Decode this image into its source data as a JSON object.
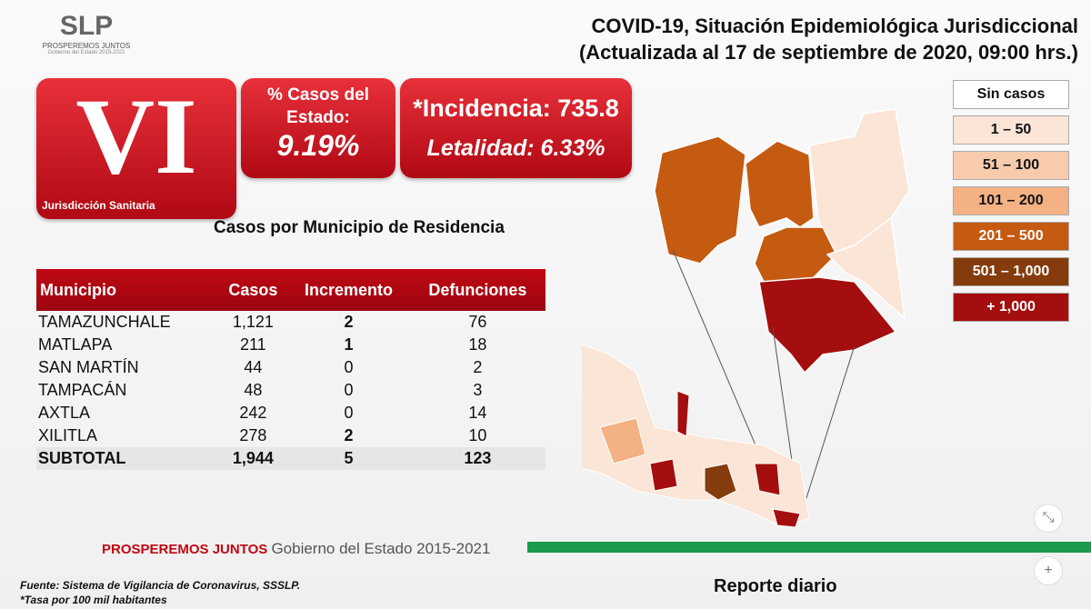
{
  "logo": {
    "text": "SLP",
    "line1": "PROSPEREMOS JUNTOS",
    "line2": "Gobierno del Estado 2015-2021"
  },
  "title": {
    "line1": "COVID-19, Situación Epidemiológica Jurisdiccional",
    "line2": "(Actualizada al 17 de septiembre de 2020, 09:00 hrs.)"
  },
  "jurisdiction": {
    "number": "VI",
    "label": "Jurisdicción Sanitaria"
  },
  "percent": {
    "label": "% Casos del Estado:",
    "value": "9.19%"
  },
  "incidence": {
    "label": "*Incidencia: 735.8",
    "lethality": "Letalidad: 6.33%"
  },
  "subtitle": "Casos por Municipio  de Residencia",
  "table": {
    "headers": [
      "Municipio",
      "Casos",
      "Incremento",
      "Defunciones"
    ],
    "rows": [
      [
        "TAMAZUNCHALE",
        "1,121",
        "2",
        "76"
      ],
      [
        "MATLAPA",
        "211",
        "1",
        "18"
      ],
      [
        "SAN MARTÍN",
        "44",
        "0",
        "2"
      ],
      [
        "TAMPACÁN",
        "48",
        "0",
        "3"
      ],
      [
        "AXTLA",
        "242",
        "0",
        "14"
      ],
      [
        "XILITLA",
        "278",
        "2",
        "10"
      ]
    ],
    "total": [
      "SUBTOTAL",
      "1,944",
      "5",
      "123"
    ]
  },
  "legend": [
    {
      "label": "Sin casos",
      "color": "#ffffff"
    },
    {
      "label": "1 – 50",
      "color": "#fbe5d6"
    },
    {
      "label": "51 – 100",
      "color": "#f8cbad"
    },
    {
      "label": "101 – 200",
      "color": "#f4b183"
    },
    {
      "label": "201 – 500",
      "color": "#c55a11"
    },
    {
      "label": "501 – 1,000",
      "color": "#843c0c"
    },
    {
      "label": "+ 1,000",
      "color": "#a50e0e"
    }
  ],
  "footer": {
    "brand": "PROSPEREMOS JUNTOS",
    "gov": "Gobierno del Estado 2015-2021",
    "source": "Fuente: Sistema de Vigilancia de Coronavirus, SSSLP.",
    "note": "*Tasa por 100 mil habitantes",
    "report": "Reporte diario"
  },
  "controls": {
    "collapse": "⤡",
    "zoom_in": "+"
  }
}
